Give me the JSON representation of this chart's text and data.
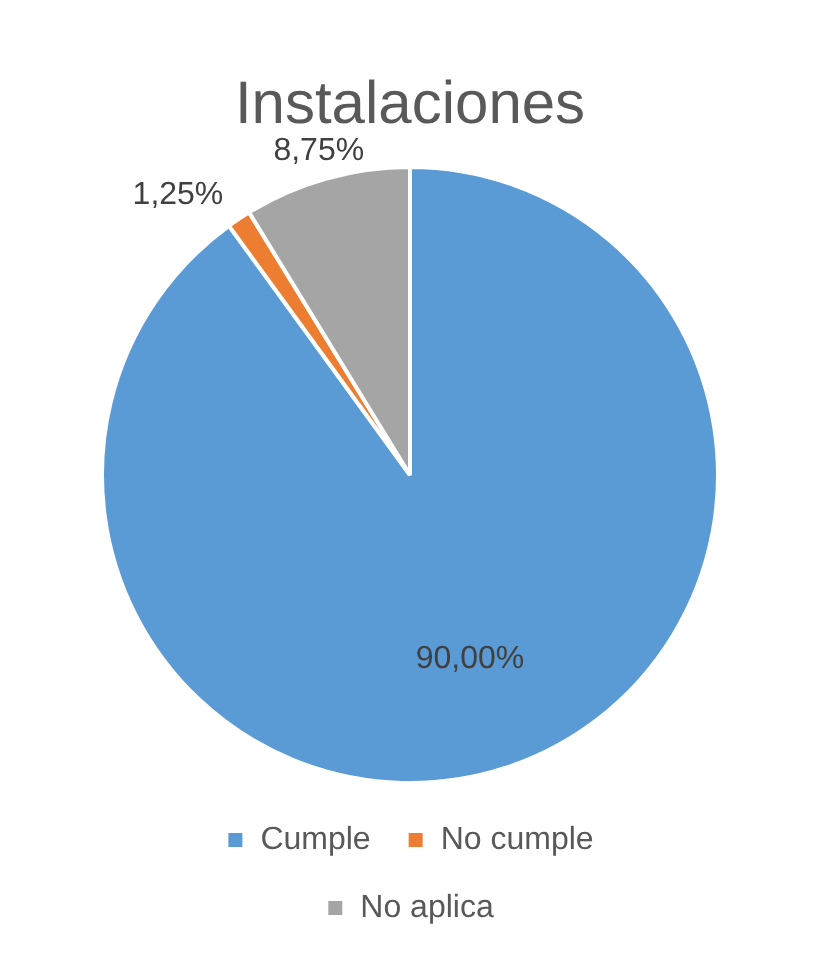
{
  "chart_data": {
    "type": "pie",
    "title": "Instalaciones",
    "categories": [
      "Cumple",
      "No cumple",
      "No aplica"
    ],
    "values": [
      90,
      1.25,
      8.75
    ],
    "colors": [
      "#5b9bd5",
      "#ed7d31",
      "#a5a5a5"
    ],
    "value_labels": [
      "90,00%",
      "1,25%",
      "8,75%"
    ],
    "legend": "bottom"
  }
}
